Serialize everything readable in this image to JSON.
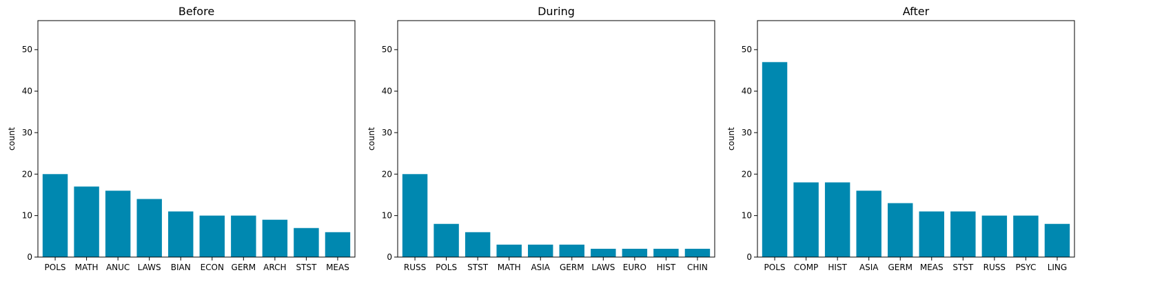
{
  "chart_data": [
    {
      "type": "bar",
      "title": "Before",
      "xlabel": "",
      "ylabel": "count",
      "ylim": [
        0,
        57
      ],
      "yticks": [
        0,
        10,
        20,
        30,
        40,
        50
      ],
      "grid": false,
      "bar_color": "#0088b0",
      "categories": [
        "POLS",
        "MATH",
        "ANUC",
        "LAWS",
        "BIAN",
        "ECON",
        "GERM",
        "ARCH",
        "STST",
        "MEAS"
      ],
      "values": [
        20,
        17,
        16,
        14,
        11,
        10,
        10,
        9,
        7,
        6
      ]
    },
    {
      "type": "bar",
      "title": "During",
      "xlabel": "",
      "ylabel": "count",
      "ylim": [
        0,
        57
      ],
      "yticks": [
        0,
        10,
        20,
        30,
        40,
        50
      ],
      "grid": false,
      "bar_color": "#0088b0",
      "categories": [
        "RUSS",
        "POLS",
        "STST",
        "MATH",
        "ASIA",
        "GERM",
        "LAWS",
        "EURO",
        "HIST",
        "CHIN"
      ],
      "values": [
        20,
        8,
        6,
        3,
        3,
        3,
        2,
        2,
        2,
        2
      ]
    },
    {
      "type": "bar",
      "title": "After",
      "xlabel": "",
      "ylabel": "count",
      "ylim": [
        0,
        57
      ],
      "yticks": [
        0,
        10,
        20,
        30,
        40,
        50
      ],
      "grid": false,
      "bar_color": "#0088b0",
      "categories": [
        "POLS",
        "COMP",
        "HIST",
        "ASIA",
        "GERM",
        "MEAS",
        "STST",
        "RUSS",
        "PSYC",
        "LING"
      ],
      "values": [
        47,
        18,
        18,
        16,
        13,
        11,
        11,
        10,
        10,
        8
      ]
    }
  ]
}
